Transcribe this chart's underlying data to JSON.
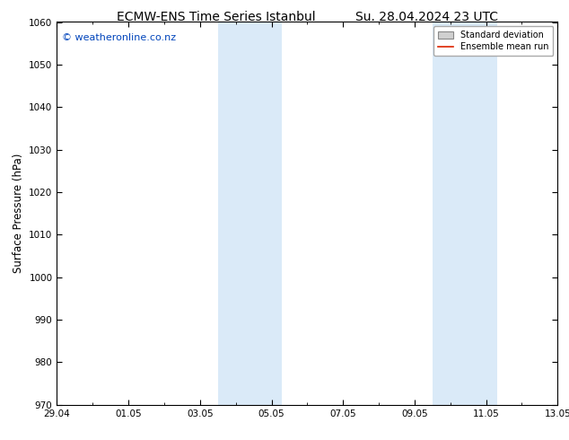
{
  "title": "ECMW-ENS Time Series Istanbul",
  "title2": "Su. 28.04.2024 23 UTC",
  "ylabel": "Surface Pressure (hPa)",
  "ylim": [
    970,
    1060
  ],
  "yticks": [
    970,
    980,
    990,
    1000,
    1010,
    1020,
    1030,
    1040,
    1050,
    1060
  ],
  "xtick_labels": [
    "29.04",
    "01.05",
    "03.05",
    "05.05",
    "07.05",
    "09.05",
    "11.05",
    "13.05"
  ],
  "xtick_positions": [
    0,
    2,
    4,
    6,
    8,
    10,
    12,
    14
  ],
  "xlim": [
    0,
    14
  ],
  "shaded_bands": [
    {
      "x_start": 4.5,
      "x_end": 6.3,
      "color": "#daeaf8"
    },
    {
      "x_start": 10.5,
      "x_end": 12.3,
      "color": "#daeaf8"
    }
  ],
  "watermark": "© weatheronline.co.nz",
  "watermark_color": "#0044bb",
  "legend_std_label": "Standard deviation",
  "legend_mean_label": "Ensemble mean run",
  "legend_mean_color": "#dd2200",
  "legend_std_facecolor": "#d0d0d0",
  "legend_std_edgecolor": "#888888",
  "bg_color": "#ffffff",
  "axes_bg_color": "#ffffff",
  "title_fontsize": 10,
  "tick_fontsize": 7.5,
  "ylabel_fontsize": 8.5,
  "watermark_fontsize": 8,
  "legend_fontsize": 7,
  "grid_color": "#cccccc",
  "border_color": "#000000"
}
